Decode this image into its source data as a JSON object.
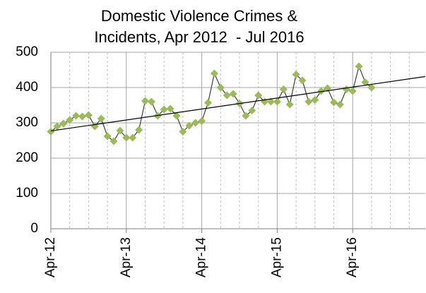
{
  "chart_data": {
    "type": "line",
    "title": [
      "Domestic Violence Crimes &",
      "Incidents, Apr 2012  - Jul 2016"
    ],
    "categories": [
      "Apr-12",
      null,
      null,
      null,
      null,
      null,
      null,
      null,
      null,
      null,
      null,
      null,
      "Apr-13",
      null,
      null,
      null,
      null,
      null,
      null,
      null,
      null,
      null,
      null,
      null,
      "Apr-14",
      null,
      null,
      null,
      null,
      null,
      null,
      null,
      null,
      null,
      null,
      null,
      "Apr-15",
      null,
      null,
      null,
      null,
      null,
      null,
      null,
      null,
      null,
      null,
      null,
      "Apr-16",
      null,
      null,
      null
    ],
    "series": [
      {
        "name": null,
        "color": "#9bbb59",
        "values": [
          275,
          290,
          298,
          308,
          320,
          318,
          322,
          290,
          312,
          262,
          248,
          278,
          258,
          258,
          280,
          362,
          360,
          320,
          338,
          340,
          320,
          275,
          292,
          300,
          305,
          357,
          440,
          400,
          378,
          382,
          355,
          320,
          335,
          378,
          360,
          360,
          360,
          395,
          352,
          437,
          420,
          360,
          365,
          390,
          398,
          358,
          352,
          395,
          390,
          460,
          415,
          400
        ]
      }
    ],
    "ylim": [
      0,
      500
    ],
    "yticks": [
      0,
      100,
      200,
      300,
      400,
      500
    ],
    "grid": true,
    "trendline": true
  }
}
